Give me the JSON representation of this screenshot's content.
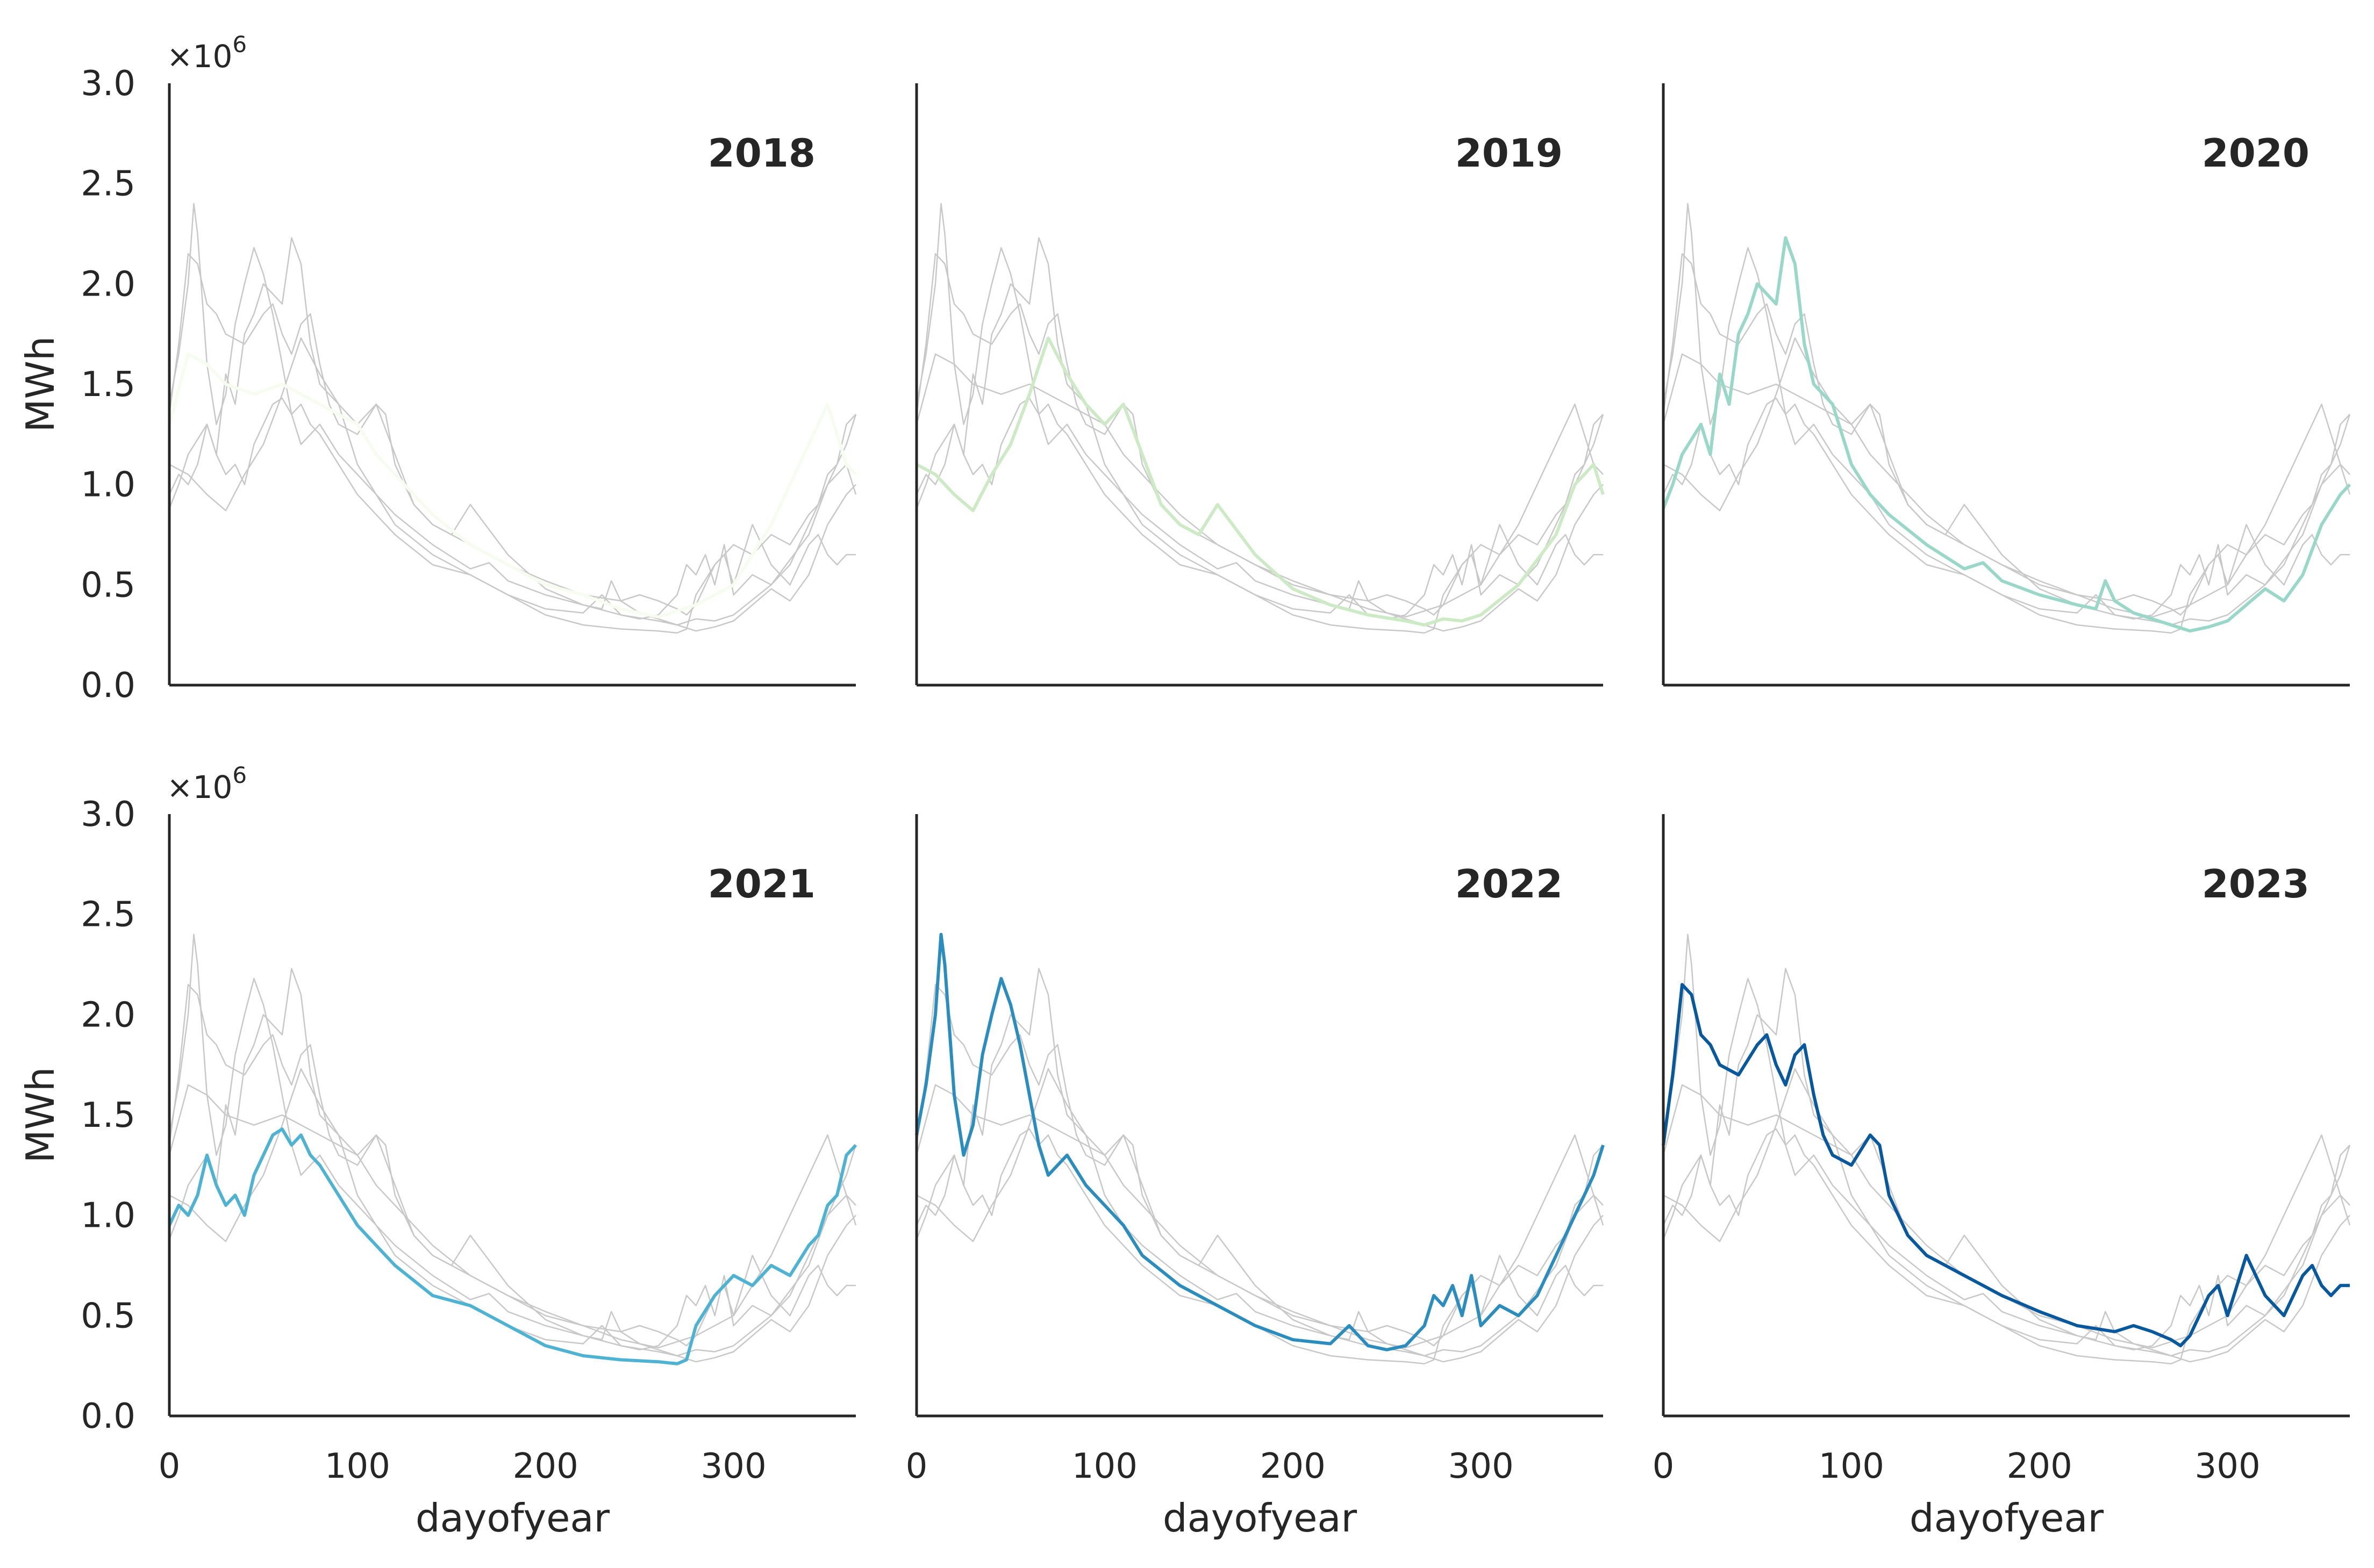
{
  "chart_data": {
    "type": "line",
    "layout": "2x3 small multiples; each panel highlights one year over the other years drawn in light gray",
    "xlabel": "dayofyear",
    "ylabel": "MWh",
    "y_scale_label": "×10^6",
    "xlim": [
      0,
      365
    ],
    "ylim": [
      0,
      3000000
    ],
    "xticks": [
      0,
      100,
      200,
      300
    ],
    "yticks": [
      0.0,
      0.5,
      1.0,
      1.5,
      2.0,
      2.5,
      3.0
    ],
    "ytick_labels": [
      "0.0",
      "0.5",
      "1.0",
      "1.5",
      "2.0",
      "2.5",
      "3.0"
    ],
    "grid": false,
    "series": [
      {
        "name": "2018",
        "color": "#f7fcf0",
        "x": [
          0,
          10,
          20,
          30,
          45,
          60,
          70,
          80,
          90,
          100,
          110,
          120,
          140,
          160,
          180,
          200,
          220,
          240,
          260,
          280,
          300,
          310,
          320,
          330,
          340,
          350,
          360,
          365
        ],
        "y": [
          1300000,
          1650000,
          1600000,
          1500000,
          1450000,
          1500000,
          1450000,
          1400000,
          1350000,
          1300000,
          1150000,
          1050000,
          850000,
          700000,
          600000,
          500000,
          450000,
          380000,
          340000,
          400000,
          500000,
          650000,
          800000,
          1000000,
          1200000,
          1400000,
          1100000,
          1050000
        ]
      },
      {
        "name": "2019",
        "color": "#ccebc5",
        "x": [
          0,
          10,
          20,
          30,
          40,
          50,
          60,
          70,
          80,
          90,
          100,
          110,
          120,
          130,
          140,
          150,
          160,
          180,
          200,
          220,
          240,
          260,
          270,
          280,
          290,
          300,
          320,
          340,
          350,
          360,
          365
        ],
        "y": [
          1100000,
          1050000,
          950000,
          870000,
          1050000,
          1200000,
          1450000,
          1730000,
          1550000,
          1400000,
          1300000,
          1400000,
          1150000,
          900000,
          800000,
          750000,
          900000,
          650000,
          480000,
          400000,
          350000,
          320000,
          300000,
          330000,
          320000,
          350000,
          500000,
          750000,
          1000000,
          1100000,
          950000
        ]
      },
      {
        "name": "2020",
        "color": "#99d8c9",
        "x": [
          0,
          5,
          10,
          20,
          25,
          30,
          35,
          40,
          45,
          50,
          55,
          60,
          65,
          70,
          75,
          80,
          85,
          90,
          95,
          100,
          110,
          120,
          140,
          160,
          170,
          180,
          200,
          220,
          230,
          235,
          240,
          250,
          260,
          270,
          280,
          290,
          300,
          310,
          320,
          330,
          340,
          350,
          360,
          365
        ],
        "y": [
          880000,
          1000000,
          1150000,
          1300000,
          1150000,
          1550000,
          1400000,
          1750000,
          1850000,
          2000000,
          1950000,
          1900000,
          2230000,
          2100000,
          1700000,
          1500000,
          1450000,
          1400000,
          1250000,
          1100000,
          950000,
          850000,
          700000,
          580000,
          610000,
          520000,
          450000,
          400000,
          380000,
          520000,
          420000,
          360000,
          330000,
          300000,
          270000,
          290000,
          320000,
          400000,
          480000,
          420000,
          550000,
          800000,
          950000,
          1000000
        ]
      },
      {
        "name": "2021",
        "color": "#4eb3d3",
        "x": [
          0,
          5,
          10,
          15,
          20,
          25,
          30,
          35,
          40,
          45,
          50,
          55,
          60,
          65,
          70,
          75,
          80,
          90,
          100,
          110,
          120,
          140,
          160,
          180,
          200,
          220,
          240,
          260,
          270,
          275,
          280,
          290,
          300,
          310,
          320,
          330,
          340,
          345,
          350,
          355,
          360,
          365
        ],
        "y": [
          950000,
          1050000,
          1000000,
          1100000,
          1300000,
          1150000,
          1050000,
          1100000,
          1000000,
          1200000,
          1300000,
          1400000,
          1430000,
          1350000,
          1400000,
          1300000,
          1250000,
          1100000,
          950000,
          850000,
          750000,
          600000,
          550000,
          450000,
          350000,
          300000,
          280000,
          270000,
          260000,
          280000,
          450000,
          600000,
          700000,
          650000,
          750000,
          700000,
          850000,
          900000,
          1050000,
          1100000,
          1300000,
          1350000
        ]
      },
      {
        "name": "2022",
        "color": "#2b8cbe",
        "x": [
          0,
          5,
          10,
          13,
          15,
          20,
          25,
          30,
          35,
          40,
          45,
          50,
          55,
          60,
          65,
          70,
          75,
          80,
          90,
          100,
          110,
          120,
          140,
          160,
          180,
          200,
          220,
          230,
          240,
          250,
          260,
          270,
          275,
          280,
          285,
          290,
          295,
          300,
          310,
          320,
          330,
          340,
          350,
          360,
          365
        ],
        "y": [
          1400000,
          1650000,
          2000000,
          2400000,
          2250000,
          1600000,
          1300000,
          1450000,
          1800000,
          2000000,
          2180000,
          2050000,
          1850000,
          1600000,
          1350000,
          1200000,
          1250000,
          1300000,
          1150000,
          1050000,
          950000,
          800000,
          650000,
          550000,
          450000,
          380000,
          360000,
          450000,
          350000,
          330000,
          350000,
          450000,
          600000,
          550000,
          650000,
          500000,
          700000,
          450000,
          550000,
          500000,
          600000,
          800000,
          1000000,
          1200000,
          1350000
        ]
      },
      {
        "name": "2023",
        "color": "#08589e",
        "x": [
          0,
          5,
          10,
          15,
          20,
          25,
          30,
          40,
          50,
          55,
          60,
          65,
          70,
          75,
          80,
          85,
          90,
          100,
          110,
          115,
          120,
          130,
          140,
          150,
          160,
          170,
          180,
          190,
          200,
          220,
          240,
          250,
          260,
          270,
          275,
          280,
          290,
          295,
          300,
          310,
          320,
          330,
          340,
          345,
          350,
          355,
          360,
          365
        ],
        "y": [
          1350000,
          1700000,
          2150000,
          2100000,
          1900000,
          1850000,
          1750000,
          1700000,
          1850000,
          1900000,
          1750000,
          1650000,
          1800000,
          1850000,
          1600000,
          1400000,
          1300000,
          1250000,
          1400000,
          1350000,
          1100000,
          900000,
          800000,
          750000,
          700000,
          650000,
          600000,
          560000,
          520000,
          450000,
          420000,
          450000,
          420000,
          380000,
          350000,
          400000,
          600000,
          650000,
          500000,
          800000,
          600000,
          500000,
          700000,
          750000,
          650000,
          600000,
          650000,
          650000
        ]
      }
    ]
  }
}
